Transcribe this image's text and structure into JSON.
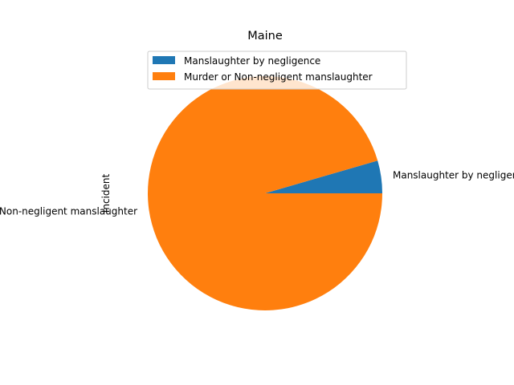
{
  "chart_data": {
    "type": "pie",
    "title": "Maine",
    "ylabel": "Incident",
    "categories": [
      "Manslaughter by negligence",
      "Murder or Non-negligent manslaughter"
    ],
    "values": [
      4.5,
      95.5
    ],
    "colors": [
      "#1f77b4",
      "#ff7f0e"
    ],
    "slice_labels": [
      "Manslaughter by negligence",
      "Murder or Non-negligent manslaughter"
    ],
    "legend": {
      "position": "upper-center",
      "entries": [
        "Manslaughter by negligence",
        "Murder or Non-negligent manslaughter"
      ]
    }
  }
}
